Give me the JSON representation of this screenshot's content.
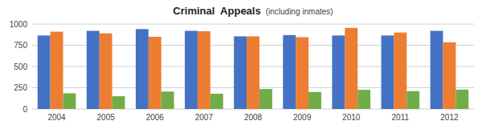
{
  "chart_data": {
    "type": "bar",
    "title": "Criminal  Appeals",
    "subtitle": "(including inmates)",
    "categories": [
      "2004",
      "2005",
      "2006",
      "2007",
      "2008",
      "2009",
      "2010",
      "2011",
      "2012"
    ],
    "series": [
      {
        "color": "#4472C4",
        "values": [
          865,
          920,
          940,
          920,
          855,
          870,
          865,
          865,
          920
        ]
      },
      {
        "color": "#ED7D31",
        "values": [
          910,
          890,
          850,
          915,
          855,
          845,
          955,
          900,
          785
        ]
      },
      {
        "color": "#70AD47",
        "values": [
          185,
          150,
          205,
          180,
          235,
          200,
          225,
          210,
          228
        ]
      }
    ],
    "ylim": [
      0,
      1000
    ],
    "yticks": [
      0,
      250,
      500,
      750,
      1000
    ],
    "grid": true
  }
}
